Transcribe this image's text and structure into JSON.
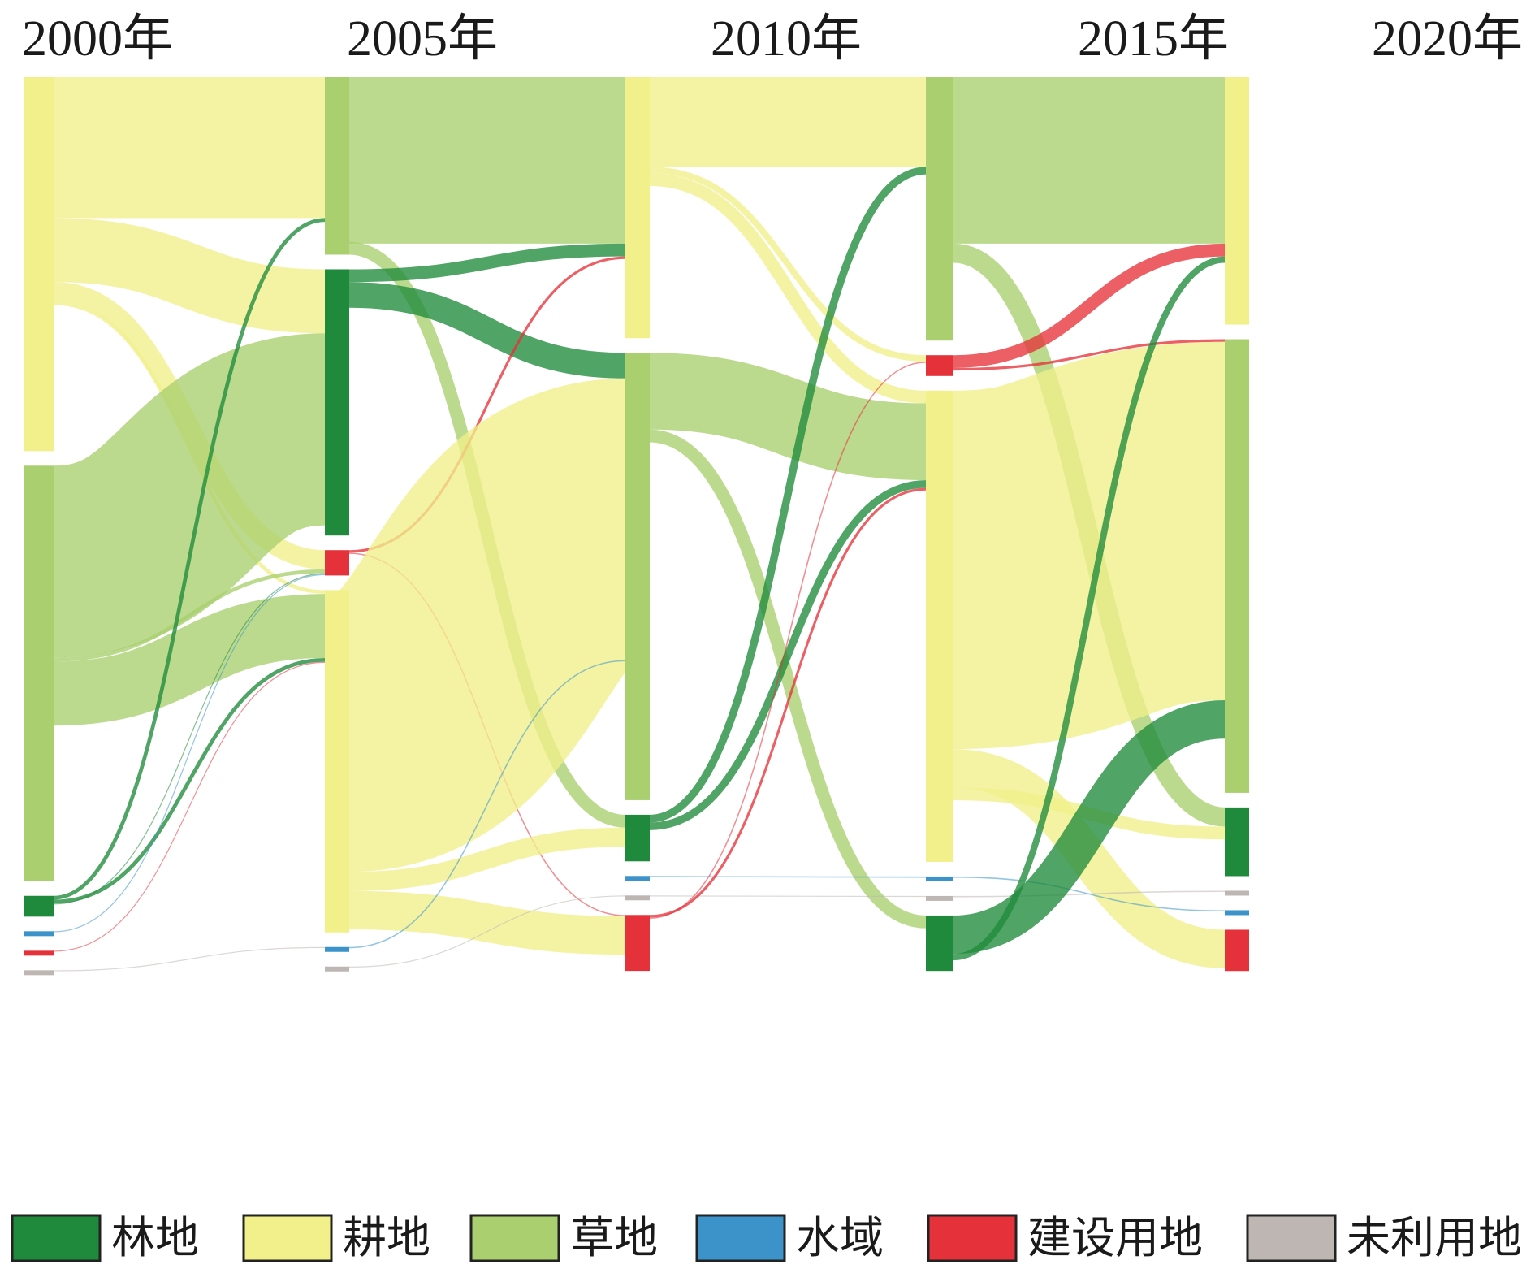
{
  "chart_data": {
    "type": "sankey",
    "title": "",
    "years": [
      "2000年",
      "2005年",
      "2010年",
      "2015年",
      "2020年"
    ],
    "categories": [
      {
        "key": "forest",
        "name": "林地",
        "color": "#1f8a3b"
      },
      {
        "key": "cropland",
        "name": "耕地",
        "color": "#f1f08a"
      },
      {
        "key": "grassland",
        "name": "草地",
        "color": "#a9cf6e"
      },
      {
        "key": "water",
        "name": "水域",
        "color": "#3b93c9"
      },
      {
        "key": "built",
        "name": "建设用地",
        "color": "#e5323a"
      },
      {
        "key": "unused",
        "name": "未利用地",
        "color": "#bdb6b3"
      }
    ],
    "nodes": [
      {
        "id": "2000-cropland",
        "year": 0,
        "category": "cropland",
        "value": 18
      },
      {
        "id": "2000-grassland",
        "year": 0,
        "category": "grassland",
        "value": 20
      },
      {
        "id": "2000-forest",
        "year": 0,
        "category": "forest",
        "value": 1
      },
      {
        "id": "2000-water",
        "year": 0,
        "category": "water",
        "value": 0.1
      },
      {
        "id": "2000-built",
        "year": 0,
        "category": "built",
        "value": 0.1
      },
      {
        "id": "2000-unused",
        "year": 0,
        "category": "unused",
        "value": 0.1
      },
      {
        "id": "2005-grassland",
        "year": 1,
        "category": "grassland",
        "value": 14
      },
      {
        "id": "2005-forest",
        "year": 1,
        "category": "forest",
        "value": 21
      },
      {
        "id": "2005-built",
        "year": 1,
        "category": "built",
        "value": 2
      },
      {
        "id": "2005-cropland",
        "year": 1,
        "category": "cropland",
        "value": 27
      },
      {
        "id": "2005-water",
        "year": 1,
        "category": "water",
        "value": 0.3
      },
      {
        "id": "2005-unused",
        "year": 1,
        "category": "unused",
        "value": 0.1
      },
      {
        "id": "2010-cropland",
        "year": 2,
        "category": "cropland",
        "value": 14
      },
      {
        "id": "2010-grassland",
        "year": 2,
        "category": "grassland",
        "value": 24
      },
      {
        "id": "2010-forest",
        "year": 2,
        "category": "forest",
        "value": 2.5
      },
      {
        "id": "2010-water",
        "year": 2,
        "category": "water",
        "value": 0.2
      },
      {
        "id": "2010-unused",
        "year": 2,
        "category": "unused",
        "value": 0.1
      },
      {
        "id": "2010-built",
        "year": 2,
        "category": "built",
        "value": 3
      },
      {
        "id": "2015-grassland",
        "year": 3,
        "category": "grassland",
        "value": 19
      },
      {
        "id": "2015-built",
        "year": 3,
        "category": "built",
        "value": 1.5
      },
      {
        "id": "2015-cropland",
        "year": 3,
        "category": "cropland",
        "value": 34
      },
      {
        "id": "2015-water",
        "year": 3,
        "category": "water",
        "value": 0.3
      },
      {
        "id": "2015-unused",
        "year": 3,
        "category": "unused",
        "value": 0.1
      },
      {
        "id": "2015-forest",
        "year": 3,
        "category": "forest",
        "value": 4
      },
      {
        "id": "2020-cropland",
        "year": 4,
        "category": "cropland",
        "value": 18
      },
      {
        "id": "2020-grassland",
        "year": 4,
        "category": "grassland",
        "value": 33
      },
      {
        "id": "2020-forest",
        "year": 4,
        "category": "forest",
        "value": 5
      },
      {
        "id": "2020-unused",
        "year": 4,
        "category": "unused",
        "value": 0.2
      },
      {
        "id": "2020-water",
        "year": 4,
        "category": "water",
        "value": 0.2
      },
      {
        "id": "2020-built",
        "year": 4,
        "category": "built",
        "value": 3
      }
    ],
    "links": [
      {
        "source": "2000-cropland",
        "target": "2005-grassland",
        "value": 11
      },
      {
        "source": "2000-cropland",
        "target": "2005-forest",
        "value": 5
      },
      {
        "source": "2000-cropland",
        "target": "2005-built",
        "value": 1.5
      },
      {
        "source": "2000-cropland",
        "target": "2005-cropland",
        "value": 0.3
      },
      {
        "source": "2000-grassland",
        "target": "2005-forest",
        "value": 15
      },
      {
        "source": "2000-grassland",
        "target": "2005-built",
        "value": 0.3
      },
      {
        "source": "2000-grassland",
        "target": "2005-cropland",
        "value": 5
      },
      {
        "source": "2000-forest",
        "target": "2005-grassland",
        "value": 0.3
      },
      {
        "source": "2000-forest",
        "target": "2005-cropland",
        "value": 0.3
      },
      {
        "source": "2000-forest",
        "target": "2005-built",
        "value": 0.05
      },
      {
        "source": "2000-water",
        "target": "2005-built",
        "value": 0.05
      },
      {
        "source": "2000-built",
        "target": "2005-cropland",
        "value": 0.05
      },
      {
        "source": "2000-unused",
        "target": "2005-water",
        "value": 0.05
      },
      {
        "source": "2005-grassland",
        "target": "2010-cropland",
        "value": 13
      },
      {
        "source": "2005-grassland",
        "target": "2010-forest",
        "value": 1
      },
      {
        "source": "2005-forest",
        "target": "2010-cropland",
        "value": 1
      },
      {
        "source": "2005-forest",
        "target": "2010-grassland",
        "value": 2
      },
      {
        "source": "2005-built",
        "target": "2010-cropland",
        "value": 0.2
      },
      {
        "source": "2005-built",
        "target": "2010-built",
        "value": 0.1
      },
      {
        "source": "2005-cropland",
        "target": "2010-grassland",
        "value": 22
      },
      {
        "source": "2005-cropland",
        "target": "2010-forest",
        "value": 1.5
      },
      {
        "source": "2005-cropland",
        "target": "2010-built",
        "value": 3
      },
      {
        "source": "2005-water",
        "target": "2010-grassland",
        "value": 0.1
      },
      {
        "source": "2005-unused",
        "target": "2010-unused",
        "value": 0.05
      },
      {
        "source": "2010-cropland",
        "target": "2015-grassland",
        "value": 7
      },
      {
        "source": "2010-cropland",
        "target": "2015-built",
        "value": 0.5
      },
      {
        "source": "2010-cropland",
        "target": "2015-cropland",
        "value": 1
      },
      {
        "source": "2010-grassland",
        "target": "2015-cropland",
        "value": 6
      },
      {
        "source": "2010-grassland",
        "target": "2015-forest",
        "value": 1
      },
      {
        "source": "2010-forest",
        "target": "2015-grassland",
        "value": 0.6
      },
      {
        "source": "2010-forest",
        "target": "2015-cropland",
        "value": 0.6
      },
      {
        "source": "2010-water",
        "target": "2015-water",
        "value": 0.1
      },
      {
        "source": "2010-unused",
        "target": "2015-unused",
        "value": 0.05
      },
      {
        "source": "2010-built",
        "target": "2015-cropland",
        "value": 0.2
      },
      {
        "source": "2010-built",
        "target": "2015-built",
        "value": 0.1
      },
      {
        "source": "2015-grassland",
        "target": "2020-cropland",
        "value": 13
      },
      {
        "source": "2015-grassland",
        "target": "2020-forest",
        "value": 1.5
      },
      {
        "source": "2015-built",
        "target": "2020-cropland",
        "value": 1
      },
      {
        "source": "2015-built",
        "target": "2020-grassland",
        "value": 0.2
      },
      {
        "source": "2015-cropland",
        "target": "2020-grassland",
        "value": 28
      },
      {
        "source": "2015-cropland",
        "target": "2020-built",
        "value": 3
      },
      {
        "source": "2015-cropland",
        "target": "2020-forest",
        "value": 1
      },
      {
        "source": "2015-water",
        "target": "2020-water",
        "value": 0.1
      },
      {
        "source": "2015-unused",
        "target": "2020-unused",
        "value": 0.1
      },
      {
        "source": "2015-forest",
        "target": "2020-grassland",
        "value": 3
      },
      {
        "source": "2015-forest",
        "target": "2020-cropland",
        "value": 0.5
      }
    ],
    "legend": "bottom"
  }
}
